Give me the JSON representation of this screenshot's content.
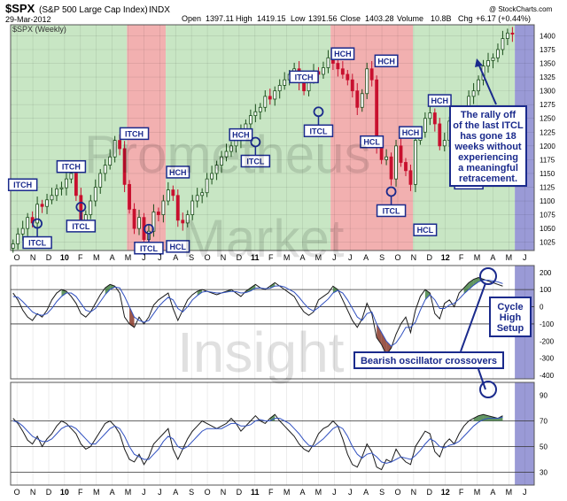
{
  "header": {
    "symbol": "$SPX",
    "name": "(S&P 500 Large Cap Index)",
    "exchange": "INDX",
    "date": "29-Mar-2012",
    "open_label": "Open",
    "open": "1397.11",
    "high_label": "High",
    "high": "1419.15",
    "low_label": "Low",
    "low": "1391.56",
    "close_label": "Close",
    "close": "1403.28",
    "volume_label": "Volume",
    "volume": "10.8B",
    "chg_label": "Chg",
    "chg": "+6.17 (+0.44%)",
    "copyright": "@ StockCharts.com"
  },
  "colors": {
    "bull_band": "#c8e6c4",
    "bear_band": "#f2b0b0",
    "future_band": "#9a9ad6",
    "candle_up": "#1a4d1a",
    "candle_down": "#c8102e",
    "label_box_stroke": "#1a2a8c",
    "label_text": "#1a2a8c",
    "oscillator_line": "#1a1a1a",
    "signal_line": "#3050c0",
    "osc_fill_pos": "#3a7a3a",
    "osc_fill_neg": "#8a3a2a"
  },
  "watermark": [
    "Prometheus",
    "Market",
    "Insight"
  ],
  "chart_data": [
    {
      "type": "candlestick",
      "title": "$SPX (Weekly)",
      "x_tick_labels": [
        "O",
        "N",
        "D",
        "10",
        "F",
        "M",
        "A",
        "M",
        "J",
        "J",
        "A",
        "S",
        "O",
        "N",
        "D",
        "11",
        "F",
        "M",
        "A",
        "M",
        "J",
        "J",
        "A",
        "S",
        "O",
        "N",
        "D",
        "12",
        "F",
        "M",
        "A",
        "M",
        "J"
      ],
      "y_ticks": [
        1025,
        1050,
        1075,
        1100,
        1125,
        1150,
        1175,
        1200,
        1225,
        1250,
        1275,
        1300,
        1325,
        1350,
        1375,
        1400
      ],
      "ylim": [
        1010,
        1420
      ],
      "weekly_closes": [
        1022,
        1040,
        1050,
        1070,
        1060,
        1094,
        1090,
        1102,
        1110,
        1122,
        1124,
        1140,
        1150,
        1110,
        1065,
        1075,
        1100,
        1125,
        1150,
        1165,
        1180,
        1210,
        1195,
        1130,
        1085,
        1050,
        1070,
        1030,
        1045,
        1080,
        1075,
        1100,
        1120,
        1110,
        1065,
        1060,
        1075,
        1100,
        1110,
        1115,
        1140,
        1150,
        1165,
        1180,
        1190,
        1200,
        1210,
        1225,
        1240,
        1255,
        1262,
        1270,
        1290,
        1285,
        1300,
        1310,
        1320,
        1330,
        1340,
        1315,
        1300,
        1325,
        1335,
        1330,
        1342,
        1360,
        1350,
        1340,
        1330,
        1320,
        1300,
        1270,
        1295,
        1340,
        1320,
        1200,
        1175,
        1180,
        1140,
        1200,
        1170,
        1155,
        1130,
        1210,
        1225,
        1250,
        1260,
        1240,
        1200,
        1210,
        1245,
        1220,
        1255,
        1265,
        1290,
        1300,
        1320,
        1345,
        1355,
        1360,
        1375,
        1395,
        1405,
        1403
      ],
      "phase_bands": [
        {
          "phase": "bull",
          "from_week": 0,
          "to_week": 24
        },
        {
          "phase": "bear",
          "from_week": 24,
          "to_week": 32
        },
        {
          "phase": "bull",
          "from_week": 32,
          "to_week": 66
        },
        {
          "phase": "bear",
          "from_week": 66,
          "to_week": 83
        },
        {
          "phase": "bull",
          "from_week": 83,
          "to_week": 104
        },
        {
          "phase": "future",
          "from_week": 104,
          "to_week": 108
        }
      ],
      "annotations": [
        {
          "text": "ITCH",
          "week": 2,
          "value": 1127,
          "mark": false
        },
        {
          "text": "ITCL",
          "week": 5,
          "value": 1022,
          "mark": true
        },
        {
          "text": "ITCH",
          "week": 12,
          "value": 1160,
          "mark": false
        },
        {
          "text": "ITCL",
          "week": 14,
          "value": 1052,
          "mark": true
        },
        {
          "text": "ITCH",
          "week": 25,
          "value": 1220,
          "mark": false
        },
        {
          "text": "ITCL",
          "week": 28,
          "value": 1012,
          "mark": true
        },
        {
          "text": "HCH",
          "week": 34,
          "value": 1150,
          "mark": false
        },
        {
          "text": "HCL",
          "week": 34,
          "value": 1015,
          "mark": false
        },
        {
          "text": "HCH",
          "week": 47,
          "value": 1218,
          "mark": false
        },
        {
          "text": "ITCL",
          "week": 50,
          "value": 1170,
          "mark": true
        },
        {
          "text": "ITCH",
          "week": 60,
          "value": 1323,
          "mark": false
        },
        {
          "text": "ITCL",
          "week": 63,
          "value": 1225,
          "mark": true
        },
        {
          "text": "HCH",
          "week": 68,
          "value": 1365,
          "mark": false
        },
        {
          "text": "HCH",
          "week": 77,
          "value": 1352,
          "mark": false
        },
        {
          "text": "HCL",
          "week": 74,
          "value": 1205,
          "mark": false
        },
        {
          "text": "HCH",
          "week": 82,
          "value": 1222,
          "mark": false
        },
        {
          "text": "ITCL",
          "week": 78,
          "value": 1080,
          "mark": true
        },
        {
          "text": "HCL",
          "week": 85,
          "value": 1045,
          "mark": false
        },
        {
          "text": "HCH",
          "week": 88,
          "value": 1280,
          "mark": false
        },
        {
          "text": "ITCL",
          "week": 94,
          "value": 1130,
          "mark": true
        }
      ],
      "callout": {
        "lines": [
          "The rally off",
          "of the last ITCL",
          "has gone 18",
          "weeks without",
          "experiencing",
          "a meaningful",
          "retracement."
        ]
      }
    },
    {
      "type": "line",
      "y_ticks": [
        200,
        100,
        0,
        -100,
        -200,
        -300,
        -400
      ],
      "ylim": [
        -420,
        240
      ],
      "reference_lines": [
        0,
        100,
        -100
      ],
      "oscillator": [
        80,
        40,
        -20,
        -60,
        -80,
        -40,
        -60,
        -20,
        40,
        80,
        100,
        90,
        60,
        20,
        -40,
        -60,
        -30,
        20,
        70,
        110,
        130,
        120,
        80,
        -60,
        -100,
        -120,
        -60,
        -100,
        -60,
        10,
        40,
        60,
        80,
        -10,
        -80,
        -20,
        40,
        70,
        90,
        100,
        90,
        80,
        70,
        80,
        90,
        100,
        80,
        60,
        90,
        110,
        130,
        110,
        100,
        120,
        140,
        120,
        100,
        80,
        60,
        10,
        -30,
        -50,
        -30,
        40,
        60,
        80,
        120,
        100,
        40,
        -20,
        -80,
        -120,
        -70,
        20,
        -40,
        -180,
        -220,
        -280,
        -240,
        -160,
        -100,
        -60,
        -150,
        -20,
        60,
        100,
        80,
        -40,
        -70,
        20,
        40,
        0,
        80,
        110,
        140,
        160,
        170,
        160,
        150,
        140,
        130,
        120
      ],
      "signal": [
        60,
        55,
        30,
        0,
        -30,
        -45,
        -50,
        -40,
        -10,
        30,
        60,
        80,
        80,
        60,
        20,
        -20,
        -30,
        -10,
        30,
        70,
        100,
        115,
        110,
        60,
        0,
        -60,
        -80,
        -90,
        -80,
        -40,
        0,
        30,
        55,
        40,
        -10,
        -30,
        0,
        40,
        65,
        85,
        90,
        85,
        80,
        80,
        85,
        90,
        88,
        80,
        82,
        92,
        108,
        110,
        105,
        108,
        120,
        122,
        115,
        100,
        85,
        55,
        20,
        -10,
        -25,
        -5,
        20,
        45,
        80,
        95,
        80,
        40,
        -10,
        -60,
        -80,
        -40,
        -30,
        -100,
        -150,
        -200,
        -230,
        -210,
        -170,
        -120,
        -120,
        -90,
        -20,
        40,
        70,
        40,
        -10,
        -10,
        10,
        20,
        45,
        75,
        100,
        125,
        145,
        155,
        155,
        150,
        145,
        135
      ],
      "annotations": [
        {
          "text": "Cycle"
        },
        {
          "text": "High"
        },
        {
          "text": "Setup"
        },
        {
          "text": "Bearish oscillator crossovers"
        }
      ]
    },
    {
      "type": "line",
      "y_ticks": [
        90,
        70,
        50,
        30
      ],
      "ylim": [
        20,
        100
      ],
      "reference_lines": [
        70,
        50,
        30
      ],
      "rsi": [
        72,
        68,
        62,
        55,
        52,
        58,
        50,
        56,
        60,
        66,
        70,
        68,
        64,
        60,
        52,
        48,
        50,
        56,
        62,
        68,
        70,
        66,
        60,
        48,
        40,
        38,
        44,
        36,
        42,
        52,
        56,
        60,
        64,
        48,
        40,
        48,
        56,
        62,
        66,
        70,
        68,
        66,
        64,
        66,
        68,
        72,
        68,
        62,
        66,
        70,
        74,
        70,
        68,
        72,
        75,
        70,
        66,
        62,
        58,
        52,
        48,
        46,
        52,
        60,
        64,
        66,
        70,
        66,
        56,
        44,
        36,
        34,
        42,
        52,
        46,
        34,
        32,
        40,
        38,
        48,
        42,
        38,
        36,
        50,
        56,
        62,
        60,
        46,
        42,
        52,
        56,
        52,
        60,
        66,
        70,
        72,
        74,
        75,
        74,
        73,
        72,
        74
      ],
      "rsi_signal": [
        70,
        69,
        66,
        62,
        58,
        56,
        54,
        54,
        56,
        60,
        64,
        66,
        66,
        64,
        60,
        56,
        52,
        52,
        56,
        60,
        64,
        66,
        64,
        58,
        50,
        44,
        42,
        40,
        40,
        44,
        48,
        54,
        58,
        56,
        50,
        48,
        50,
        54,
        58,
        62,
        64,
        64,
        64,
        64,
        66,
        68,
        68,
        66,
        66,
        67,
        70,
        71,
        70,
        70,
        72,
        72,
        70,
        68,
        64,
        60,
        55,
        51,
        50,
        53,
        56,
        60,
        64,
        66,
        64,
        58,
        50,
        44,
        41,
        44,
        45,
        42,
        38,
        37,
        38,
        40,
        42,
        41,
        40,
        43,
        47,
        52,
        56,
        54,
        50,
        49,
        51,
        52,
        54,
        58,
        62,
        66,
        69,
        71,
        72,
        72,
        72,
        73
      ]
    }
  ]
}
